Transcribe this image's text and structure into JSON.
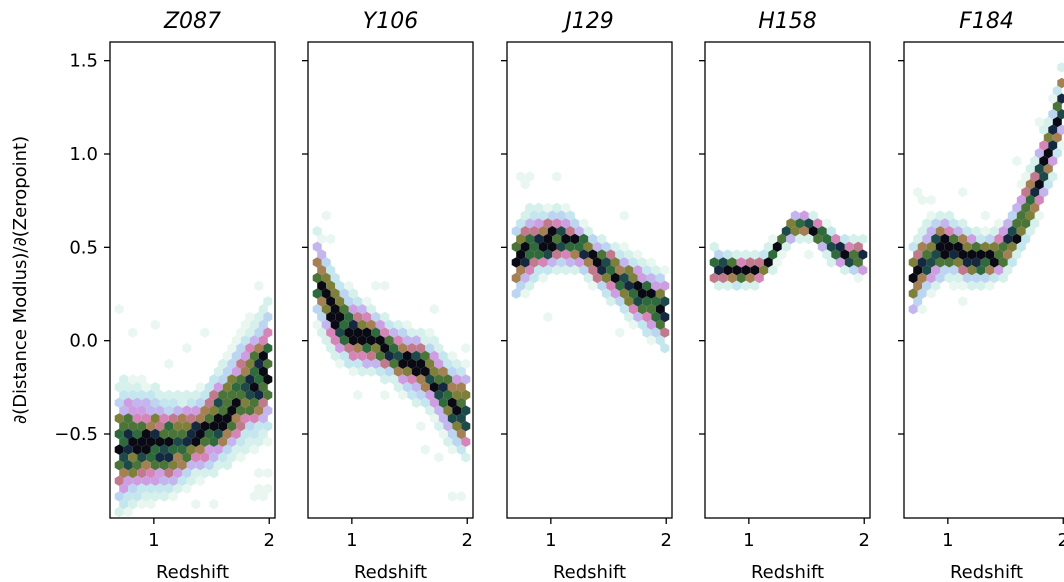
{
  "chart_data": {
    "type": "heatmap",
    "subtype": "hexbin",
    "ylabel": "∂(Distance Modlus)/∂(Zeropoint)",
    "ylim": [
      -0.95,
      1.6
    ],
    "yticks": [
      1.5,
      1.0,
      0.5,
      0.0,
      -0.5
    ],
    "ytick_labels": [
      "1.5",
      "1.0",
      "0.5",
      "0.0",
      "−0.5"
    ],
    "xlim": [
      0.62,
      2.05
    ],
    "xticks": [
      1,
      2
    ],
    "xtick_labels": [
      "1",
      "2"
    ],
    "colormap": "cubehelix",
    "panels": [
      {
        "title": "Z087",
        "xlabel": "Redshift",
        "curve_x": [
          0.7,
          0.8,
          0.9,
          1.0,
          1.1,
          1.2,
          1.3,
          1.4,
          1.5,
          1.6,
          1.7,
          1.8,
          1.9,
          2.0
        ],
        "curve_y": [
          -0.58,
          -0.56,
          -0.55,
          -0.55,
          -0.57,
          -0.55,
          -0.53,
          -0.5,
          -0.45,
          -0.4,
          -0.33,
          -0.25,
          -0.2,
          -0.15
        ],
        "spread": 0.1
      },
      {
        "title": "Y106",
        "xlabel": "Redshift",
        "curve_x": [
          0.7,
          0.8,
          0.9,
          1.0,
          1.1,
          1.2,
          1.3,
          1.4,
          1.5,
          1.6,
          1.7,
          1.8,
          1.9,
          2.0
        ],
        "curve_y": [
          0.35,
          0.2,
          0.1,
          0.05,
          0.02,
          0.0,
          -0.05,
          -0.08,
          -0.12,
          -0.15,
          -0.2,
          -0.28,
          -0.35,
          -0.4
        ],
        "spread": 0.07
      },
      {
        "title": "J129",
        "xlabel": "Redshift",
        "curve_x": [
          0.7,
          0.8,
          0.9,
          1.0,
          1.1,
          1.2,
          1.3,
          1.4,
          1.5,
          1.6,
          1.7,
          1.8,
          1.9,
          2.0
        ],
        "curve_y": [
          0.42,
          0.5,
          0.52,
          0.53,
          0.55,
          0.52,
          0.48,
          0.42,
          0.38,
          0.33,
          0.28,
          0.23,
          0.2,
          0.15
        ],
        "spread": 0.06
      },
      {
        "title": "H158",
        "xlabel": "Redshift",
        "curve_x": [
          0.7,
          0.8,
          0.9,
          1.0,
          1.1,
          1.2,
          1.3,
          1.4,
          1.5,
          1.6,
          1.7,
          1.8,
          1.9,
          2.0
        ],
        "curve_y": [
          0.4,
          0.38,
          0.37,
          0.37,
          0.38,
          0.45,
          0.55,
          0.62,
          0.62,
          0.58,
          0.52,
          0.47,
          0.45,
          0.45
        ],
        "spread": 0.03
      },
      {
        "title": "F184",
        "xlabel": "Redshift",
        "curve_x": [
          0.7,
          0.8,
          0.9,
          1.0,
          1.1,
          1.2,
          1.3,
          1.4,
          1.5,
          1.6,
          1.7,
          1.8,
          1.9,
          2.0
        ],
        "curve_y": [
          0.32,
          0.42,
          0.48,
          0.5,
          0.48,
          0.45,
          0.43,
          0.45,
          0.5,
          0.6,
          0.72,
          0.88,
          1.05,
          1.3
        ],
        "spread": 0.06
      }
    ]
  }
}
